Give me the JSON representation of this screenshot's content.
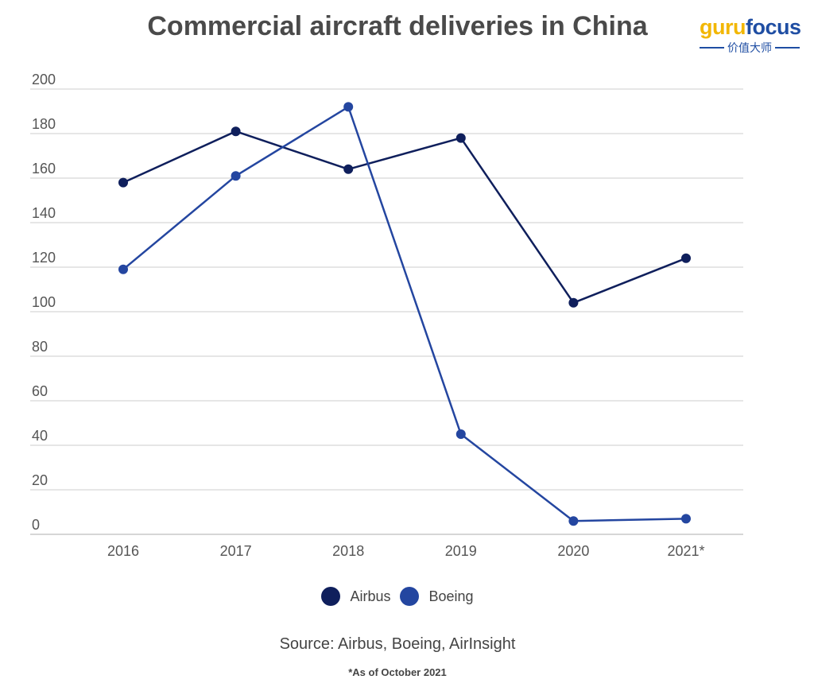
{
  "logo": {
    "guru": "guru",
    "focus": "focus",
    "tagline": "价值大师"
  },
  "chart_data": {
    "type": "line",
    "title": "Commercial aircraft deliveries in China",
    "categories": [
      "2016",
      "2017",
      "2018",
      "2019",
      "2020",
      "2021*"
    ],
    "series": [
      {
        "name": "Airbus",
        "color": "#0f1f5c",
        "values": [
          158,
          181,
          164,
          178,
          104,
          124
        ]
      },
      {
        "name": "Boeing",
        "color": "#2446a0",
        "values": [
          119,
          161,
          192,
          45,
          6,
          7
        ]
      }
    ],
    "y_ticks": [
      0,
      20,
      40,
      60,
      80,
      100,
      120,
      140,
      160,
      180,
      200
    ],
    "ylim": [
      0,
      200
    ],
    "xlabel": "",
    "ylabel": "",
    "grid": true,
    "legend_position": "bottom",
    "source": "Source: Airbus, Boeing, AirInsight",
    "footnote": "*As of October 2021"
  }
}
